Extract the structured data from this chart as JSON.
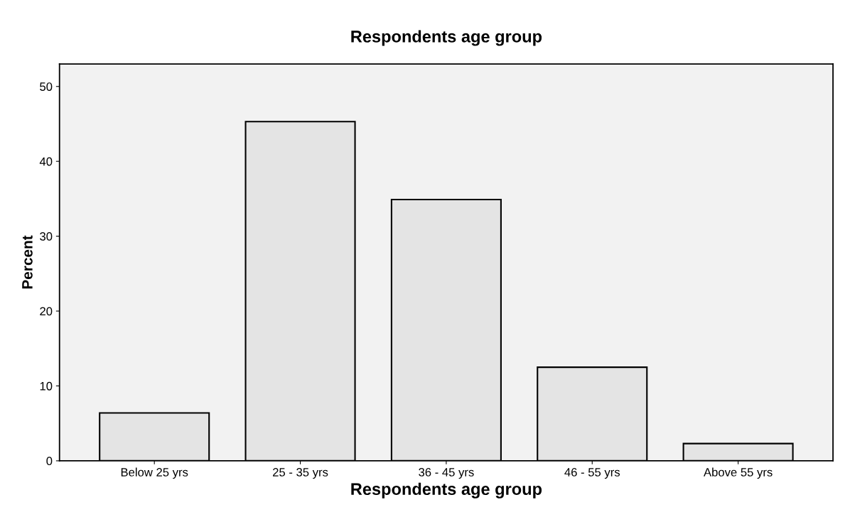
{
  "chart_data": {
    "type": "bar",
    "title": "Respondents age group",
    "xlabel": "Respondents age group",
    "ylabel": "Percent",
    "categories": [
      "Below 25 yrs",
      "25 - 35 yrs",
      "36 - 45 yrs",
      "46 - 55 yrs",
      "Above 55 yrs"
    ],
    "values": [
      6.4,
      45.3,
      34.9,
      12.5,
      2.3
    ],
    "color": "#e4e4e4",
    "ylim": [
      0,
      53
    ],
    "yticks": [
      0,
      10,
      20,
      30,
      40,
      50
    ],
    "grid": false
  }
}
